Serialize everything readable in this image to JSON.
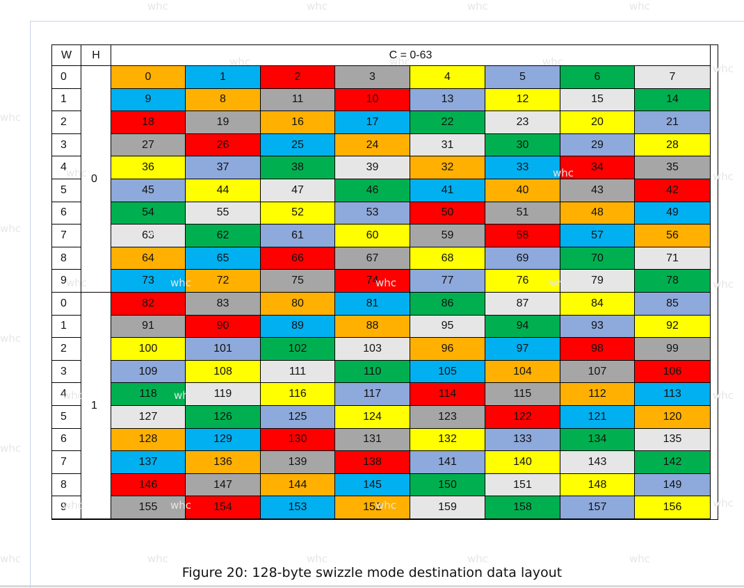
{
  "headers": {
    "w": "W",
    "h": "H",
    "c": "C = 0-63"
  },
  "w_labels": [
    "0",
    "1",
    "2",
    "3",
    "4",
    "5",
    "6",
    "7",
    "8",
    "9",
    "0",
    "1",
    "2",
    "3",
    "4",
    "5",
    "6",
    "7",
    "8",
    "9"
  ],
  "h_labels": [
    "0",
    "1"
  ],
  "palette": {
    "O": "#ffb000",
    "B": "#00b0f0",
    "R": "#ff0000",
    "G": "#a6a6a6",
    "Y": "#ffff00",
    "L": "#8ea9db",
    "N": "#00b050",
    "W": "#e7e6e6"
  },
  "rows": [
    [
      [
        "0",
        "O"
      ],
      [
        "1",
        "B"
      ],
      [
        "2",
        "R"
      ],
      [
        "3",
        "G"
      ],
      [
        "4",
        "Y"
      ],
      [
        "5",
        "L"
      ],
      [
        "6",
        "N"
      ],
      [
        "7",
        "W"
      ]
    ],
    [
      [
        "9",
        "B"
      ],
      [
        "8",
        "O"
      ],
      [
        "11",
        "G"
      ],
      [
        "10",
        "R"
      ],
      [
        "13",
        "L"
      ],
      [
        "12",
        "Y"
      ],
      [
        "15",
        "W"
      ],
      [
        "14",
        "N"
      ]
    ],
    [
      [
        "18",
        "R"
      ],
      [
        "19",
        "G"
      ],
      [
        "16",
        "O"
      ],
      [
        "17",
        "B"
      ],
      [
        "22",
        "N"
      ],
      [
        "23",
        "W"
      ],
      [
        "20",
        "Y"
      ],
      [
        "21",
        "L"
      ]
    ],
    [
      [
        "27",
        "G"
      ],
      [
        "26",
        "R"
      ],
      [
        "25",
        "B"
      ],
      [
        "24",
        "O"
      ],
      [
        "31",
        "W"
      ],
      [
        "30",
        "N"
      ],
      [
        "29",
        "L"
      ],
      [
        "28",
        "Y"
      ]
    ],
    [
      [
        "36",
        "Y"
      ],
      [
        "37",
        "L"
      ],
      [
        "38",
        "N"
      ],
      [
        "39",
        "W"
      ],
      [
        "32",
        "O"
      ],
      [
        "33",
        "B"
      ],
      [
        "34",
        "R"
      ],
      [
        "35",
        "G"
      ]
    ],
    [
      [
        "45",
        "L"
      ],
      [
        "44",
        "Y"
      ],
      [
        "47",
        "W"
      ],
      [
        "46",
        "N"
      ],
      [
        "41",
        "B"
      ],
      [
        "40",
        "O"
      ],
      [
        "43",
        "G"
      ],
      [
        "42",
        "R"
      ]
    ],
    [
      [
        "54",
        "N"
      ],
      [
        "55",
        "W"
      ],
      [
        "52",
        "Y"
      ],
      [
        "53",
        "L"
      ],
      [
        "50",
        "R"
      ],
      [
        "51",
        "G"
      ],
      [
        "48",
        "O"
      ],
      [
        "49",
        "B"
      ]
    ],
    [
      [
        "63",
        "W"
      ],
      [
        "62",
        "N"
      ],
      [
        "61",
        "L"
      ],
      [
        "60",
        "Y"
      ],
      [
        "59",
        "G"
      ],
      [
        "58",
        "R"
      ],
      [
        "57",
        "B"
      ],
      [
        "56",
        "O"
      ]
    ],
    [
      [
        "64",
        "O"
      ],
      [
        "65",
        "B"
      ],
      [
        "66",
        "R"
      ],
      [
        "67",
        "G"
      ],
      [
        "68",
        "Y"
      ],
      [
        "69",
        "L"
      ],
      [
        "70",
        "N"
      ],
      [
        "71",
        "W"
      ]
    ],
    [
      [
        "73",
        "B"
      ],
      [
        "72",
        "O"
      ],
      [
        "75",
        "G"
      ],
      [
        "74",
        "R"
      ],
      [
        "77",
        "L"
      ],
      [
        "76",
        "Y"
      ],
      [
        "79",
        "W"
      ],
      [
        "78",
        "N"
      ]
    ],
    [
      [
        "82",
        "R"
      ],
      [
        "83",
        "G"
      ],
      [
        "80",
        "O"
      ],
      [
        "81",
        "B"
      ],
      [
        "86",
        "N"
      ],
      [
        "87",
        "W"
      ],
      [
        "84",
        "Y"
      ],
      [
        "85",
        "L"
      ]
    ],
    [
      [
        "91",
        "G"
      ],
      [
        "90",
        "R"
      ],
      [
        "89",
        "B"
      ],
      [
        "88",
        "O"
      ],
      [
        "95",
        "W"
      ],
      [
        "94",
        "N"
      ],
      [
        "93",
        "L"
      ],
      [
        "92",
        "Y"
      ]
    ],
    [
      [
        "100",
        "Y"
      ],
      [
        "101",
        "L"
      ],
      [
        "102",
        "N"
      ],
      [
        "103",
        "W"
      ],
      [
        "96",
        "O"
      ],
      [
        "97",
        "B"
      ],
      [
        "98",
        "R"
      ],
      [
        "99",
        "G"
      ]
    ],
    [
      [
        "109",
        "L"
      ],
      [
        "108",
        "Y"
      ],
      [
        "111",
        "W"
      ],
      [
        "110",
        "N"
      ],
      [
        "105",
        "B"
      ],
      [
        "104",
        "O"
      ],
      [
        "107",
        "G"
      ],
      [
        "106",
        "R"
      ]
    ],
    [
      [
        "118",
        "N"
      ],
      [
        "119",
        "W"
      ],
      [
        "116",
        "Y"
      ],
      [
        "117",
        "L"
      ],
      [
        "114",
        "R"
      ],
      [
        "115",
        "G"
      ],
      [
        "112",
        "O"
      ],
      [
        "113",
        "B"
      ]
    ],
    [
      [
        "127",
        "W"
      ],
      [
        "126",
        "N"
      ],
      [
        "125",
        "L"
      ],
      [
        "124",
        "Y"
      ],
      [
        "123",
        "G"
      ],
      [
        "122",
        "R"
      ],
      [
        "121",
        "B"
      ],
      [
        "120",
        "O"
      ]
    ],
    [
      [
        "128",
        "O"
      ],
      [
        "129",
        "B"
      ],
      [
        "130",
        "R"
      ],
      [
        "131",
        "G"
      ],
      [
        "132",
        "Y"
      ],
      [
        "133",
        "L"
      ],
      [
        "134",
        "N"
      ],
      [
        "135",
        "W"
      ]
    ],
    [
      [
        "137",
        "B"
      ],
      [
        "136",
        "O"
      ],
      [
        "139",
        "G"
      ],
      [
        "138",
        "R"
      ],
      [
        "141",
        "L"
      ],
      [
        "140",
        "Y"
      ],
      [
        "143",
        "W"
      ],
      [
        "142",
        "N"
      ]
    ],
    [
      [
        "146",
        "R"
      ],
      [
        "147",
        "G"
      ],
      [
        "144",
        "O"
      ],
      [
        "145",
        "B"
      ],
      [
        "150",
        "N"
      ],
      [
        "151",
        "W"
      ],
      [
        "148",
        "Y"
      ],
      [
        "149",
        "L"
      ]
    ],
    [
      [
        "155",
        "G"
      ],
      [
        "154",
        "R"
      ],
      [
        "153",
        "B"
      ],
      [
        "152",
        "O"
      ],
      [
        "159",
        "W"
      ],
      [
        "158",
        "N"
      ],
      [
        "157",
        "L"
      ],
      [
        "156",
        "Y"
      ]
    ]
  ],
  "caption": "Figure 20: 128-byte swizzle mode destination data layout",
  "watermark": "whc"
}
